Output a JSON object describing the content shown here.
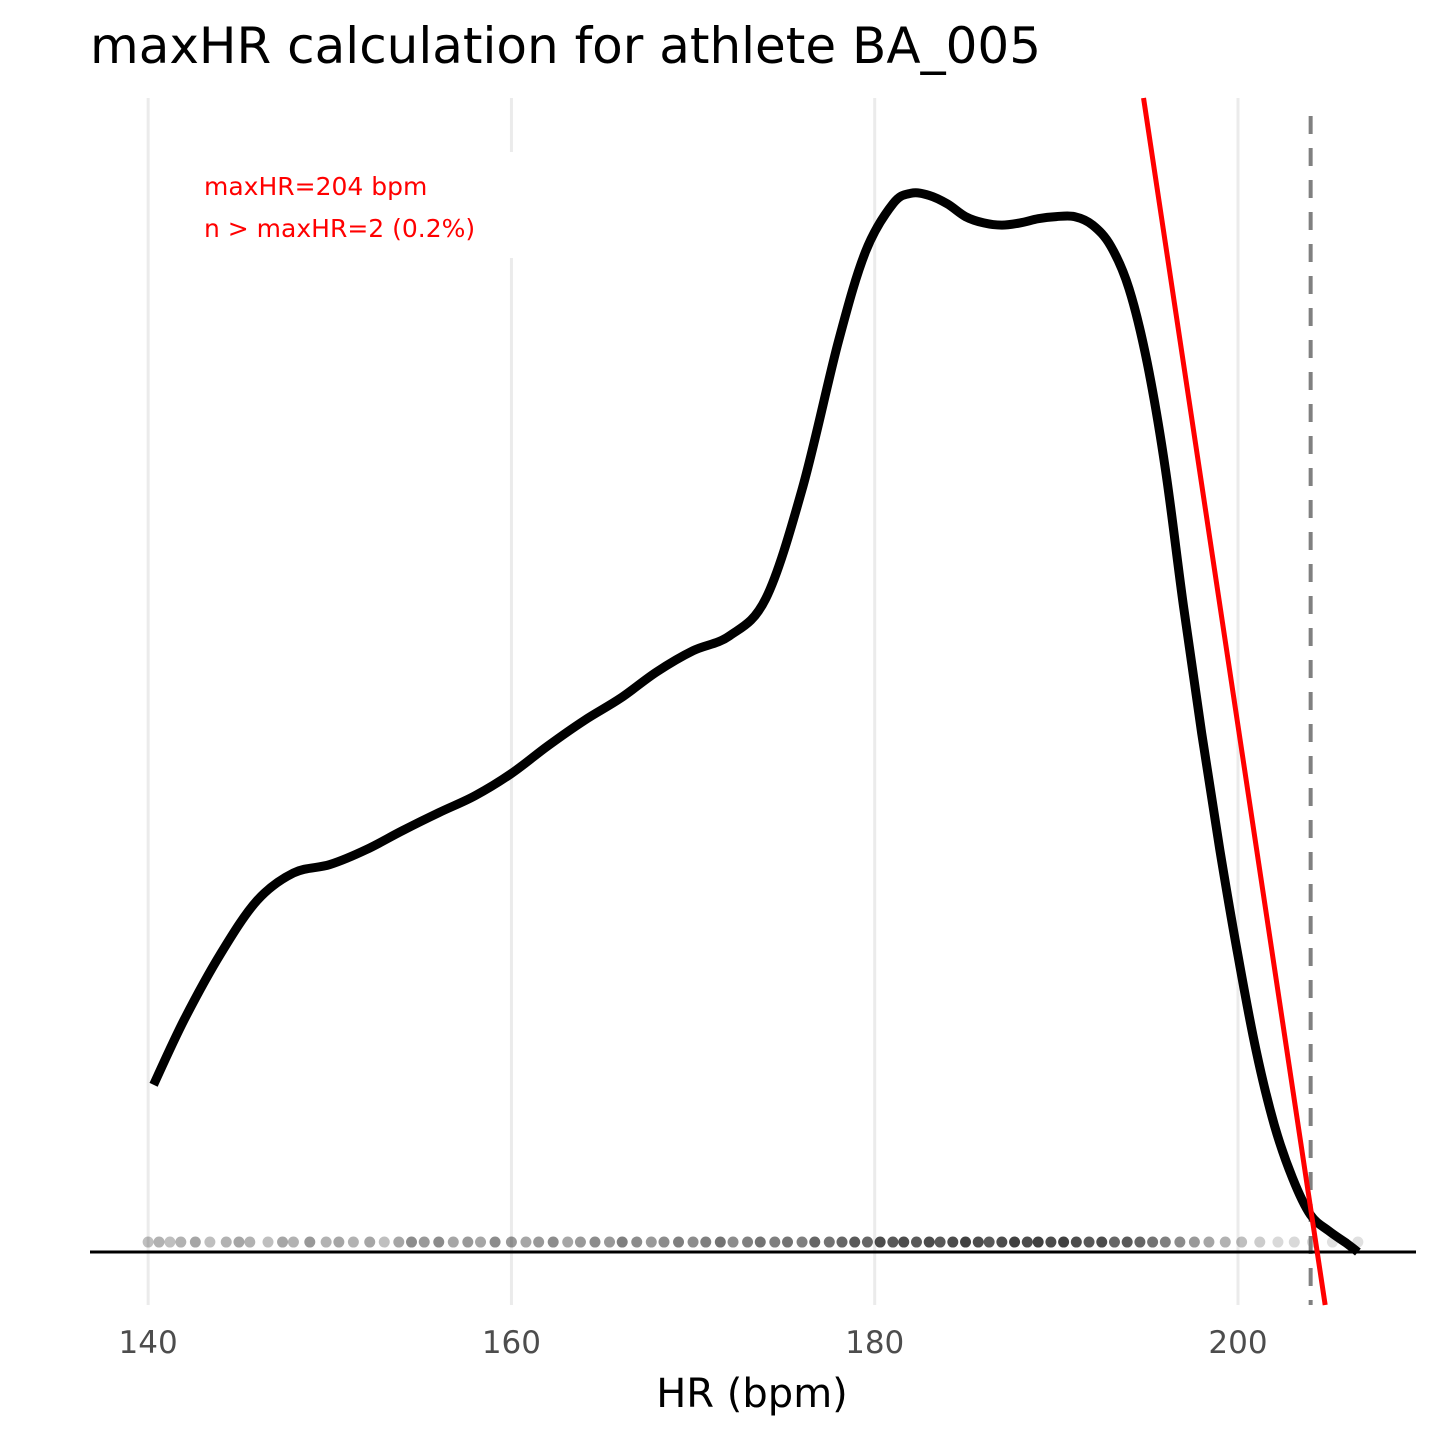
{
  "chart_data": {
    "type": "line",
    "title": "maxHR calculation for athlete BA_005",
    "xlabel": "HR (bpm)",
    "ylabel": "",
    "xlim": [
      136.8,
      209.8
    ],
    "x_ticks": [
      "140",
      "160",
      "180",
      "200"
    ],
    "x_tick_values": [
      140,
      160,
      180,
      200
    ],
    "grid": "vertical major gridlines",
    "y_axis_labels": "none",
    "annotations": [
      "maxHR=204 bpm",
      "n > maxHR=2 (0.2%)"
    ],
    "annotation_color": "#ff0000",
    "density_curve": {
      "color": "#000000",
      "x": [
        140.3,
        142,
        144,
        146,
        148,
        150,
        152,
        154,
        156,
        158,
        160,
        162,
        164,
        166,
        168,
        170,
        172,
        174,
        176,
        178,
        179.5,
        181,
        182,
        183,
        184,
        185,
        186,
        187,
        188,
        189,
        190,
        191,
        192,
        193,
        194,
        195,
        196,
        197,
        198,
        199,
        200,
        201,
        202,
        203,
        204,
        205,
        206,
        206.6
      ],
      "y": [
        0.158,
        0.22,
        0.282,
        0.332,
        0.358,
        0.366,
        0.38,
        0.398,
        0.415,
        0.431,
        0.452,
        0.478,
        0.502,
        0.523,
        0.548,
        0.568,
        0.582,
        0.617,
        0.72,
        0.86,
        0.945,
        0.99,
        1.0,
        0.998,
        0.99,
        0.978,
        0.972,
        0.97,
        0.972,
        0.976,
        0.978,
        0.978,
        0.97,
        0.95,
        0.91,
        0.84,
        0.74,
        0.61,
        0.49,
        0.38,
        0.28,
        0.19,
        0.12,
        0.07,
        0.035,
        0.02,
        0.008,
        0.0
      ]
    },
    "tangent_line": {
      "color": "#ff0000",
      "x": [
        194.8,
        204.8
      ],
      "y": [
        1.09,
        -0.05
      ]
    },
    "vline": {
      "x": 204,
      "style": "dashed",
      "color": "#808080"
    },
    "baseline_y": 0,
    "ylim": [
      -0.05,
      1.09
    ],
    "rug": {
      "color": "#000000",
      "x": [
        140,
        140.6,
        141.2,
        141.8,
        142.6,
        143.4,
        144.3,
        145,
        145.6,
        146.6,
        147.4,
        148,
        148.9,
        149.8,
        150.5,
        151.3,
        152.2,
        153,
        153.8,
        154.5,
        155.2,
        156,
        156.8,
        157.6,
        158.3,
        159.1,
        160,
        160.8,
        161.5,
        162.3,
        163.1,
        163.8,
        164.6,
        165.4,
        166.1,
        166.9,
        167.7,
        168.4,
        169.2,
        170,
        170.7,
        171.5,
        172.2,
        173,
        173.7,
        174.5,
        175.2,
        176,
        176.7,
        177.5,
        178.2,
        178.9,
        179.6,
        180.3,
        181,
        181.6,
        182.3,
        183,
        183.6,
        184.3,
        185,
        185.7,
        186.3,
        187,
        187.7,
        188.4,
        189,
        189.7,
        190.4,
        191.1,
        191.8,
        192.5,
        193.2,
        193.9,
        194.6,
        195.3,
        196,
        196.8,
        197.6,
        198.4,
        199.3,
        200.2,
        201.2,
        202.2,
        203.1,
        204.1,
        205.2,
        206.6
      ],
      "opacity": [
        0.25,
        0.3,
        0.25,
        0.3,
        0.35,
        0.25,
        0.3,
        0.35,
        0.3,
        0.25,
        0.35,
        0.3,
        0.4,
        0.3,
        0.35,
        0.3,
        0.35,
        0.25,
        0.35,
        0.45,
        0.4,
        0.45,
        0.35,
        0.4,
        0.35,
        0.45,
        0.4,
        0.35,
        0.4,
        0.45,
        0.35,
        0.4,
        0.45,
        0.4,
        0.5,
        0.45,
        0.4,
        0.45,
        0.5,
        0.45,
        0.5,
        0.55,
        0.45,
        0.5,
        0.55,
        0.5,
        0.55,
        0.5,
        0.6,
        0.55,
        0.6,
        0.65,
        0.6,
        0.7,
        0.65,
        0.7,
        0.65,
        0.7,
        0.65,
        0.7,
        0.75,
        0.7,
        0.65,
        0.7,
        0.75,
        0.7,
        0.75,
        0.7,
        0.75,
        0.7,
        0.65,
        0.7,
        0.6,
        0.65,
        0.6,
        0.55,
        0.5,
        0.45,
        0.4,
        0.35,
        0.3,
        0.25,
        0.2,
        0.15,
        0.15,
        0.15,
        0.12,
        0.12
      ]
    }
  }
}
